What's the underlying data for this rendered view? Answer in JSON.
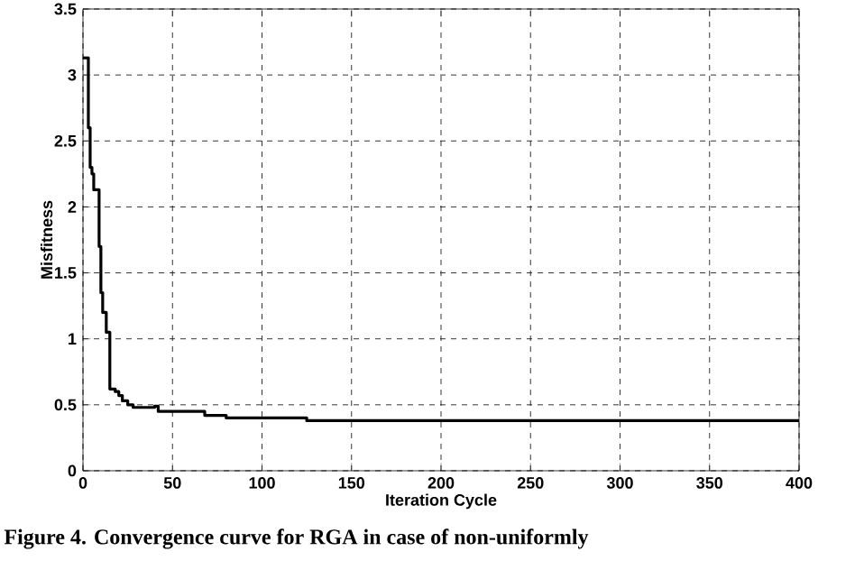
{
  "chart_data": {
    "type": "step",
    "xlabel": "Iteration Cycle",
    "ylabel": "Misfitness",
    "annotations": [
      "Figure 4. Convergence curve for RGA in case of non-uniformly"
    ],
    "series": [
      {
        "color": "#000000",
        "x": [
          0,
          3,
          4,
          5,
          6,
          9,
          10,
          11,
          13,
          15,
          18,
          20,
          22,
          25,
          28,
          35,
          40,
          42,
          68,
          80,
          125,
          400
        ],
        "values": [
          3.13,
          2.6,
          2.3,
          2.25,
          2.13,
          1.7,
          1.35,
          1.2,
          1.05,
          0.62,
          0.6,
          0.57,
          0.53,
          0.5,
          0.48,
          0.48,
          0.49,
          0.45,
          0.42,
          0.4,
          0.38,
          0.38
        ]
      }
    ],
    "xlim": [
      0,
      400
    ],
    "ylim": [
      0,
      3.5
    ],
    "xticks": [
      0,
      50,
      100,
      150,
      200,
      250,
      300,
      350,
      400
    ],
    "yticks": [
      0,
      0.5,
      1,
      1.5,
      2,
      2.5,
      3,
      3.5
    ],
    "grid": true,
    "line_style": "solid"
  }
}
